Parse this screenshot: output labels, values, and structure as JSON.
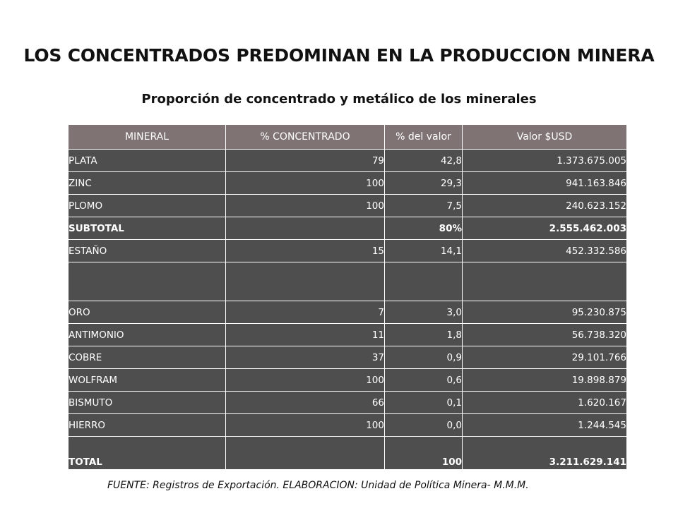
{
  "title": "LOS CONCENTRADOS PREDOMINAN EN LA PRODUCCION MINERA",
  "subtitle": "Proporción de concentrado y metálico de los minerales",
  "table": {
    "headers": [
      "MINERAL",
      "% CONCENTRADO",
      "% del valor",
      "Valor $USD"
    ],
    "rows": [
      {
        "mineral": "PLATA",
        "concentrado": "79",
        "pct_valor": "42,8",
        "valor": "1.373.675.005"
      },
      {
        "mineral": "ZINC",
        "concentrado": "100",
        "pct_valor": "29,3",
        "valor": "941.163.846"
      },
      {
        "mineral": "PLOMO",
        "concentrado": "100",
        "pct_valor": "7,5",
        "valor": "240.623.152"
      },
      {
        "mineral": "SUBTOTAL",
        "concentrado": "",
        "pct_valor": "80%",
        "valor": "2.555.462.003"
      },
      {
        "mineral": "ESTAÑO",
        "concentrado": "15",
        "pct_valor": "14,1",
        "valor": "452.332.586"
      },
      {
        "mineral": "",
        "concentrado": "",
        "pct_valor": "",
        "valor": ""
      },
      {
        "mineral": "ORO",
        "concentrado": "7",
        "pct_valor": "3,0",
        "valor": "95.230.875"
      },
      {
        "mineral": "ANTIMONIO",
        "concentrado": "11",
        "pct_valor": "1,8",
        "valor": "56.738.320"
      },
      {
        "mineral": "COBRE",
        "concentrado": "37",
        "pct_valor": "0,9",
        "valor": "29.101.766"
      },
      {
        "mineral": "WOLFRAM",
        "concentrado": "100",
        "pct_valor": "0,6",
        "valor": "19.898.879"
      },
      {
        "mineral": "BISMUTO",
        "concentrado": "66",
        "pct_valor": "0,1",
        "valor": "1.620.167"
      },
      {
        "mineral": "HIERRO",
        "concentrado": "100",
        "pct_valor": "0,0",
        "valor": "1.244.545"
      },
      {
        "mineral": "TOTAL",
        "concentrado": "",
        "pct_valor": "100",
        "valor": "3.211.629.141"
      }
    ]
  },
  "source": "FUENTE: Registros de Exportación. ELABORACION: Unidad de Política Minera- M.M.M.",
  "colors": {
    "header_bg": "#7f7373",
    "row_bg": "#4e4e4e",
    "text_light": "#ffffff",
    "text_dark": "#111111"
  }
}
